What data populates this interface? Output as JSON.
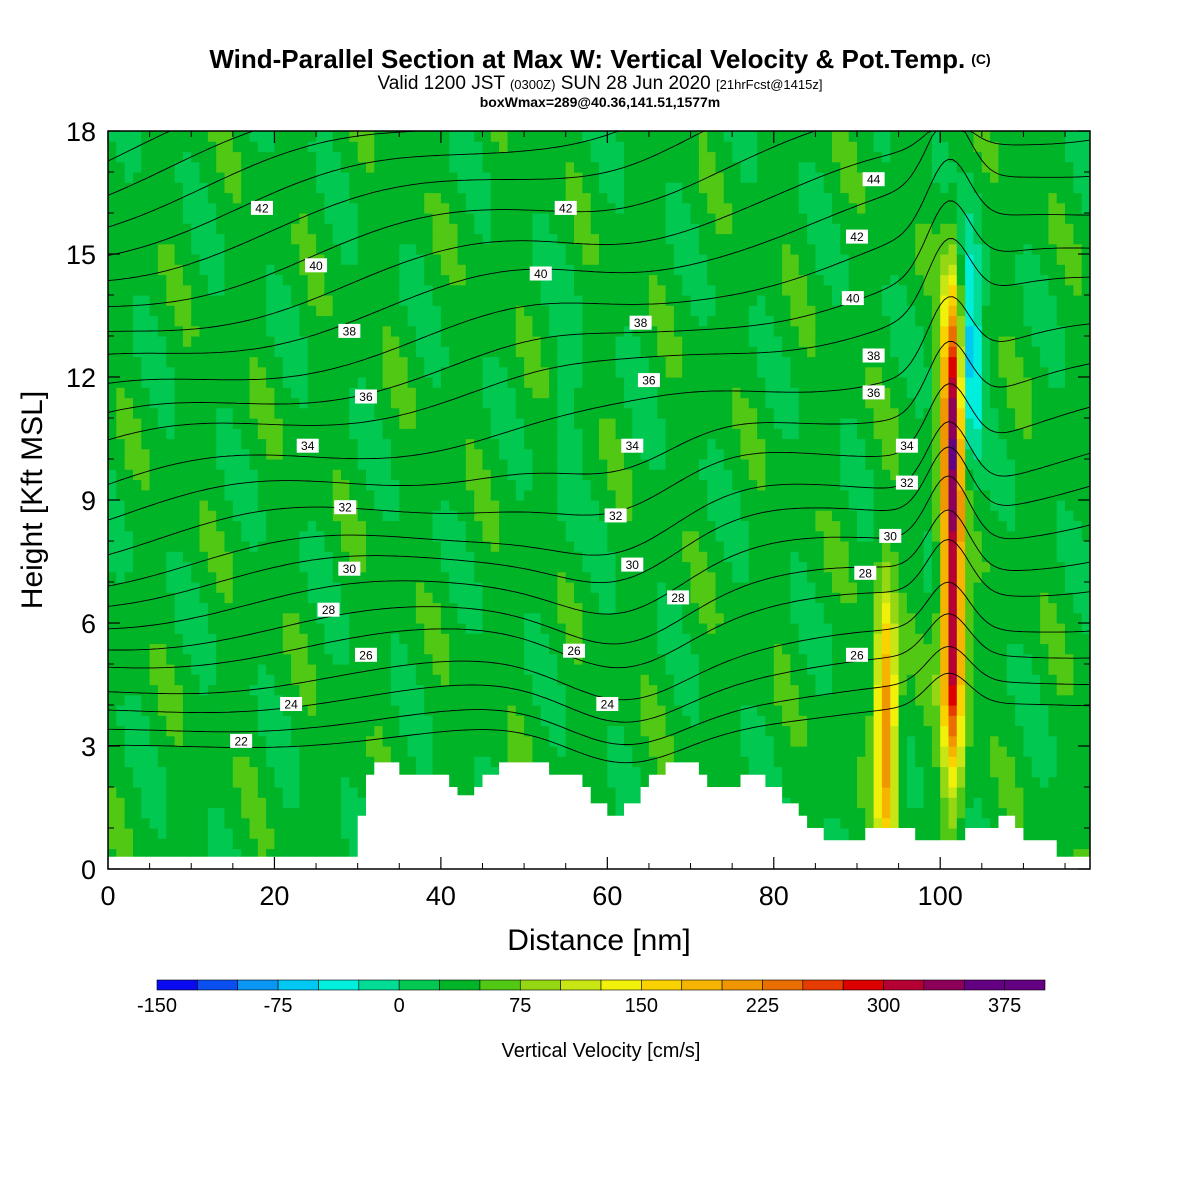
{
  "title": {
    "main": "Wind-Parallel Section at Max W: Vertical Velocity & Pot.Temp.",
    "copyright": "(C)",
    "valid_prefix": "Valid 1200 JST",
    "valid_utc": "(0300Z)",
    "valid_date": "SUN 28 Jun 2020",
    "forecast": "[21hrFcst@1415z]",
    "box_info": "boxWmax=289@40.36,141.51,1577m"
  },
  "chart_data": {
    "type": "heatmap",
    "xlabel": "Distance [nm]",
    "ylabel": "Height [Kft MSL]",
    "xlim": [
      0,
      118
    ],
    "ylim": [
      0,
      18
    ],
    "x_ticks": [
      0,
      20,
      40,
      60,
      80,
      100
    ],
    "y_ticks": [
      0,
      3,
      6,
      9,
      12,
      15,
      18
    ],
    "colorbar": {
      "title": "Vertical Velocity [cm/s]",
      "min": -150,
      "max": 400,
      "step": 25,
      "tick_values": [
        -150,
        -75,
        0,
        75,
        150,
        225,
        300,
        375
      ],
      "tick_labels": [
        "-150",
        "-75",
        "0",
        "75",
        "150",
        "225",
        "300",
        "375"
      ],
      "colors": [
        "#0a0af0",
        "#0a50f0",
        "#0a96f5",
        "#00c8f5",
        "#00eedc",
        "#00dc96",
        "#00c850",
        "#00b428",
        "#50c814",
        "#96d714",
        "#c8e614",
        "#f0f00a",
        "#fad200",
        "#f5b400",
        "#f09600",
        "#eb6e00",
        "#e63c00",
        "#dc0000",
        "#b40032",
        "#8c005a",
        "#640082"
      ]
    },
    "background_w": 10,
    "updrafts": [
      {
        "x": 93.5,
        "z": 3.5,
        "w": 200
      },
      {
        "x": 101.5,
        "z": 5.5,
        "w": 289
      },
      {
        "x": 101.5,
        "z": 11,
        "w": 300
      }
    ],
    "downdrafts": [
      {
        "x": 103.5,
        "z": 12.5,
        "w": -110
      },
      {
        "x": 55,
        "z": 11,
        "w": -30
      }
    ],
    "terrain_kft": [
      [
        0,
        0.3
      ],
      [
        30,
        0.3
      ],
      [
        30,
        1.3
      ],
      [
        31,
        1.3
      ],
      [
        31,
        2.3
      ],
      [
        32,
        2.3
      ],
      [
        32,
        2.6
      ],
      [
        35,
        2.6
      ],
      [
        35,
        2.3
      ],
      [
        41,
        2.3
      ],
      [
        41,
        2.0
      ],
      [
        42,
        2.0
      ],
      [
        42,
        1.8
      ],
      [
        44,
        1.8
      ],
      [
        44,
        2.0
      ],
      [
        45,
        2.0
      ],
      [
        45,
        2.3
      ],
      [
        47,
        2.3
      ],
      [
        47,
        2.6
      ],
      [
        53,
        2.6
      ],
      [
        53,
        2.3
      ],
      [
        57,
        2.3
      ],
      [
        57,
        2.0
      ],
      [
        58,
        2.0
      ],
      [
        58,
        1.6
      ],
      [
        60,
        1.6
      ],
      [
        60,
        1.3
      ],
      [
        62,
        1.3
      ],
      [
        62,
        1.6
      ],
      [
        64,
        1.6
      ],
      [
        64,
        2.0
      ],
      [
        65,
        2.0
      ],
      [
        65,
        2.3
      ],
      [
        67,
        2.3
      ],
      [
        67,
        2.6
      ],
      [
        71,
        2.6
      ],
      [
        71,
        2.3
      ],
      [
        72,
        2.3
      ],
      [
        72,
        2.0
      ],
      [
        76,
        2.0
      ],
      [
        76,
        2.3
      ],
      [
        79,
        2.3
      ],
      [
        79,
        2.0
      ],
      [
        81,
        2.0
      ],
      [
        81,
        1.6
      ],
      [
        83,
        1.6
      ],
      [
        83,
        1.3
      ],
      [
        84,
        1.3
      ],
      [
        84,
        1.0
      ],
      [
        86,
        1.0
      ],
      [
        86,
        0.7
      ],
      [
        91,
        0.7
      ],
      [
        91,
        1.0
      ],
      [
        97,
        1.0
      ],
      [
        97,
        0.7
      ],
      [
        103,
        0.7
      ],
      [
        103,
        1.0
      ],
      [
        107,
        1.0
      ],
      [
        107,
        1.3
      ],
      [
        109,
        1.3
      ],
      [
        109,
        1.0
      ],
      [
        110,
        1.0
      ],
      [
        110,
        0.7
      ],
      [
        114,
        0.7
      ],
      [
        114,
        0.3
      ],
      [
        116,
        0.3
      ],
      [
        116,
        0.3
      ],
      [
        118,
        0.3
      ]
    ],
    "theta_contours": [
      {
        "level": 22,
        "y0": 2.9
      },
      {
        "level": 23,
        "y0": 3.3
      },
      {
        "level": 24,
        "y0": 3.8
      },
      {
        "level": 25,
        "y0": 4.3
      },
      {
        "level": 26,
        "y0": 5.0
      },
      {
        "level": 27,
        "y0": 5.5
      },
      {
        "level": 28,
        "y0": 6.1
      },
      {
        "level": 29,
        "y0": 6.7
      },
      {
        "level": 30,
        "y0": 7.2
      },
      {
        "level": 31,
        "y0": 7.9
      },
      {
        "level": 32,
        "y0": 8.6
      },
      {
        "level": 33,
        "y0": 9.3
      },
      {
        "level": 34,
        "y0": 10.2
      },
      {
        "level": 35,
        "y0": 10.8
      },
      {
        "level": 36,
        "y0": 11.5
      },
      {
        "level": 37,
        "y0": 12.3
      },
      {
        "level": 38,
        "y0": 13.0
      },
      {
        "level": 39,
        "y0": 13.8
      },
      {
        "level": 40,
        "y0": 14.6
      },
      {
        "level": 41,
        "y0": 15.3
      },
      {
        "level": 42,
        "y0": 16.0
      },
      {
        "level": 43,
        "y0": 16.7
      },
      {
        "level": 44,
        "y0": 17.4
      }
    ],
    "contour_labels": [
      {
        "text": "42",
        "x": 18.5,
        "y": 16.1
      },
      {
        "text": "42",
        "x": 55,
        "y": 16.1
      },
      {
        "text": "44",
        "x": 92,
        "y": 16.8
      },
      {
        "text": "40",
        "x": 25,
        "y": 14.7
      },
      {
        "text": "40",
        "x": 52,
        "y": 14.5
      },
      {
        "text": "42",
        "x": 90,
        "y": 15.4
      },
      {
        "text": "38",
        "x": 29,
        "y": 13.1
      },
      {
        "text": "38",
        "x": 64,
        "y": 13.3
      },
      {
        "text": "40",
        "x": 89.5,
        "y": 13.9
      },
      {
        "text": "36",
        "x": 31,
        "y": 11.5
      },
      {
        "text": "36",
        "x": 65,
        "y": 11.9
      },
      {
        "text": "38",
        "x": 92,
        "y": 12.5
      },
      {
        "text": "34",
        "x": 24,
        "y": 10.3
      },
      {
        "text": "34",
        "x": 63,
        "y": 10.3
      },
      {
        "text": "36",
        "x": 92,
        "y": 11.6
      },
      {
        "text": "32",
        "x": 28.5,
        "y": 8.8
      },
      {
        "text": "32",
        "x": 61,
        "y": 8.6
      },
      {
        "text": "34",
        "x": 96,
        "y": 10.3
      },
      {
        "text": "30",
        "x": 29,
        "y": 7.3
      },
      {
        "text": "30",
        "x": 63,
        "y": 7.4
      },
      {
        "text": "32",
        "x": 96,
        "y": 9.4
      },
      {
        "text": "28",
        "x": 26.5,
        "y": 6.3
      },
      {
        "text": "28",
        "x": 68.5,
        "y": 6.6
      },
      {
        "text": "30",
        "x": 94,
        "y": 8.1
      },
      {
        "text": "26",
        "x": 31,
        "y": 5.2
      },
      {
        "text": "26",
        "x": 56,
        "y": 5.3
      },
      {
        "text": "28",
        "x": 91,
        "y": 7.2
      },
      {
        "text": "24",
        "x": 22,
        "y": 4.0
      },
      {
        "text": "24",
        "x": 60,
        "y": 4.0
      },
      {
        "text": "26",
        "x": 90,
        "y": 5.2
      },
      {
        "text": "22",
        "x": 16,
        "y": 3.1
      }
    ]
  }
}
